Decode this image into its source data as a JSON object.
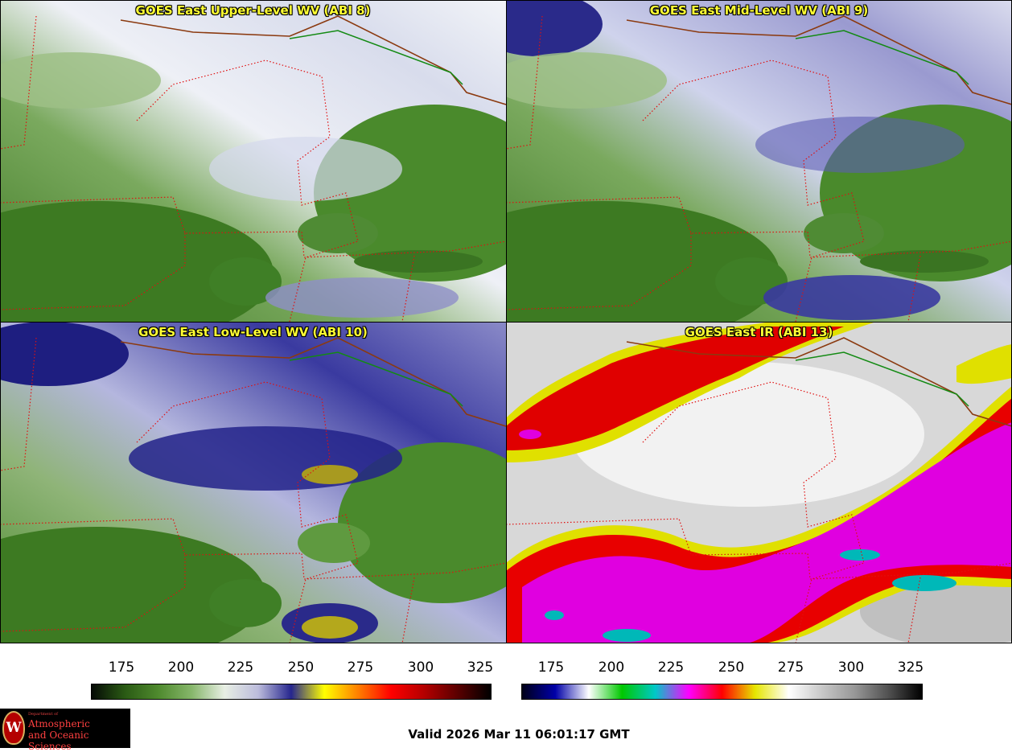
{
  "panels": [
    {
      "title": "GOES East Upper-Level WV (ABI 8)",
      "style": "wv_upper"
    },
    {
      "title": "GOES East Mid-Level WV (ABI 9)",
      "style": "wv_mid"
    },
    {
      "title": "GOES East Low-Level WV (ABI 10)",
      "style": "wv_low"
    },
    {
      "title": "GOES East IR (ABI 13)",
      "style": "ir"
    }
  ],
  "colorbars": [
    {
      "name": "water-vapor",
      "ticks": [
        "175",
        "200",
        "225",
        "250",
        "275",
        "300",
        "325"
      ],
      "range": [
        163,
        330
      ],
      "colors": [
        "#050a05",
        "#2a5a14",
        "#4f8a2e",
        "#86b66a",
        "#e8efe4",
        "#bcbcdc",
        "#26268e",
        "#ffff00",
        "#ff8000",
        "#ff0000",
        "#b40000",
        "#5a0000",
        "#000000"
      ]
    },
    {
      "name": "infrared",
      "ticks": [
        "175",
        "200",
        "225",
        "250",
        "275",
        "300",
        "325"
      ],
      "range": [
        163,
        330
      ],
      "colors": [
        "#000018",
        "#0000a8",
        "#ffffff",
        "#00c800",
        "#00c8c8",
        "#ff00ff",
        "#ff0000",
        "#e6e600",
        "#ffffff",
        "#c8c8c8",
        "#969696",
        "#505050",
        "#000000"
      ]
    }
  ],
  "logo": {
    "crest": "W",
    "department": "Department of",
    "line1": "Atmospheric",
    "line2": "and Oceanic Sciences"
  },
  "valid_time": "Valid 2026 Mar 11 06:01:17 GMT"
}
